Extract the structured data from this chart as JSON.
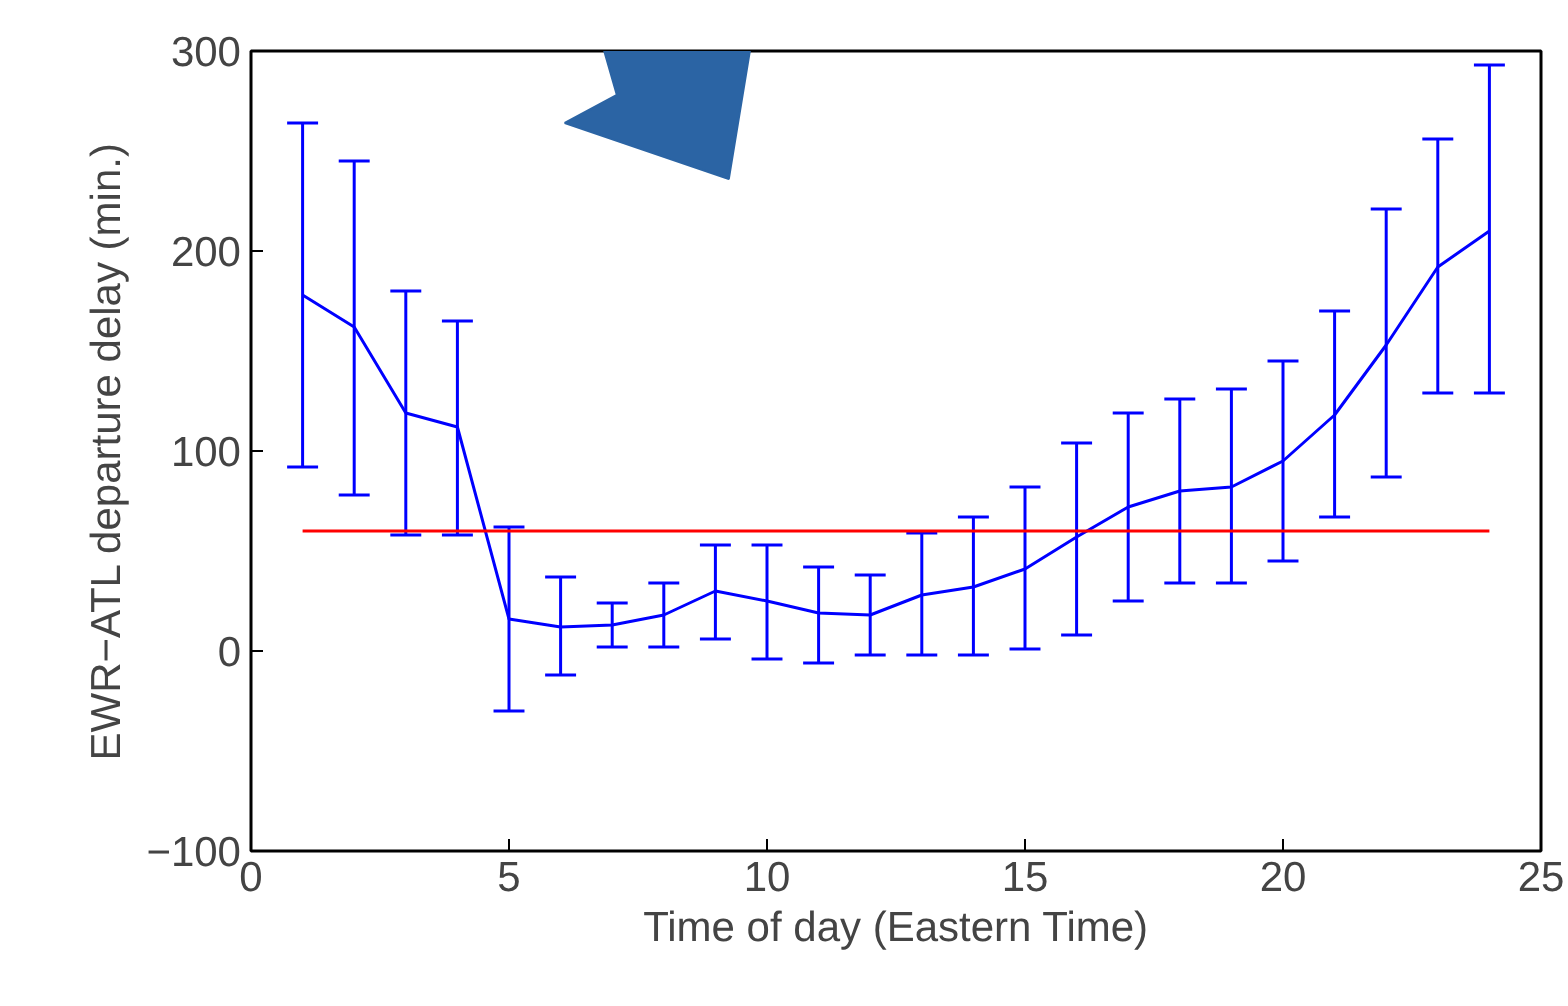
{
  "chart_data": {
    "type": "line",
    "xlabel": "Time of day (Eastern Time)",
    "ylabel": "EWR−ATL departure delay (min.)",
    "x": [
      1,
      2,
      3,
      4,
      5,
      6,
      7,
      8,
      9,
      10,
      11,
      12,
      13,
      14,
      15,
      16,
      17,
      18,
      19,
      20,
      21,
      22,
      23,
      24
    ],
    "series": [
      {
        "color": "#0000ff",
        "values": [
          178,
          162,
          119,
          112,
          16,
          12,
          13,
          18,
          30,
          25,
          19,
          18,
          28,
          32,
          41,
          57,
          72,
          80,
          82,
          95,
          118,
          153,
          192,
          210
        ],
        "errors": [
          [
            92,
            264
          ],
          [
            78,
            245
          ],
          [
            58,
            180
          ],
          [
            58,
            165
          ],
          [
            -30,
            62
          ],
          [
            -12,
            37
          ],
          [
            2,
            24
          ],
          [
            2,
            34
          ],
          [
            6,
            53
          ],
          [
            -4,
            53
          ],
          [
            -6,
            42
          ],
          [
            -2,
            38
          ],
          [
            -2,
            59
          ],
          [
            -2,
            67
          ],
          [
            1,
            82
          ],
          [
            8,
            104
          ],
          [
            25,
            119
          ],
          [
            34,
            126
          ],
          [
            34,
            131
          ],
          [
            45,
            145
          ],
          [
            67,
            170
          ],
          [
            87,
            221
          ],
          [
            129,
            256
          ],
          [
            129,
            293
          ]
        ]
      }
    ],
    "ref_lines": [
      {
        "axis": "y",
        "value": 60,
        "color": "#ff0000"
      }
    ],
    "xlim": [
      0,
      25
    ],
    "ylim": [
      -100,
      300
    ],
    "xticks": [
      0,
      5,
      10,
      15,
      20,
      25
    ],
    "yticks": [
      -100,
      0,
      100,
      200,
      300
    ],
    "grid": false,
    "marker": "none",
    "line_style": "solid"
  }
}
